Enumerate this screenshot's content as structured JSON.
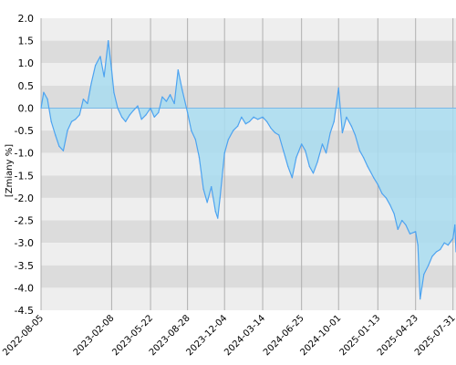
{
  "chart_data": {
    "type": "area",
    "ylabel": "[Zmiany %]",
    "xlabel": "",
    "title": "",
    "ylim": [
      -4.5,
      2.0
    ],
    "xlim": [
      "2022-08-05",
      "2025-08-08"
    ],
    "y_ticks": [
      2.0,
      1.5,
      1.0,
      0.5,
      0.0,
      -0.5,
      -1.0,
      -1.5,
      -2.0,
      -2.5,
      -3.0,
      -3.5,
      -4.0,
      -4.5
    ],
    "y_tick_labels": [
      "2.0",
      "1.5",
      "1.0",
      "0.5",
      "0.0",
      "-0.5",
      "-1.0",
      "-1.5",
      "-2.0",
      "-2.5",
      "-3.0",
      "-3.5",
      "-4.0",
      "-4.5"
    ],
    "x_tick_labels": [
      "2022-08-05",
      "2023-02-08",
      "2023-05-22",
      "2023-08-28",
      "2023-12-04",
      "2024-03-14",
      "2024-06-25",
      "2024-10-01",
      "2025-01-13",
      "2025-04-23",
      "2025-07-31"
    ],
    "grid": true,
    "colors": {
      "line": "#4da3f0",
      "fill": "#a8dcf0",
      "band_dark": "#dcdcdc",
      "band_light": "#eeeeee",
      "zero_line": "#7ab8e6",
      "vgrid": "#b0b0b0"
    },
    "series": [
      {
        "x": [
          "2022-08-05",
          "2022-08-12",
          "2022-08-22",
          "2022-09-01",
          "2022-09-12",
          "2022-09-22",
          "2022-10-03",
          "2022-10-14",
          "2022-10-25",
          "2022-11-04",
          "2022-11-15",
          "2022-11-25",
          "2022-12-06",
          "2022-12-16",
          "2022-12-27",
          "2023-01-09",
          "2023-01-19",
          "2023-01-30",
          "2023-02-08",
          "2023-02-14",
          "2023-02-24",
          "2023-03-07",
          "2023-03-17",
          "2023-03-28",
          "2023-04-07",
          "2023-04-18",
          "2023-04-28",
          "2023-05-10",
          "2023-05-22",
          "2023-06-01",
          "2023-06-12",
          "2023-06-22",
          "2023-07-03",
          "2023-07-13",
          "2023-07-24",
          "2023-08-03",
          "2023-08-14",
          "2023-08-28",
          "2023-09-07",
          "2023-09-18",
          "2023-09-28",
          "2023-10-09",
          "2023-10-19",
          "2023-10-30",
          "2023-11-10",
          "2023-11-16",
          "2023-11-22",
          "2023-12-04",
          "2023-12-14",
          "2023-12-27",
          "2024-01-08",
          "2024-01-18",
          "2024-01-29",
          "2024-02-08",
          "2024-02-19",
          "2024-03-01",
          "2024-03-14",
          "2024-03-25",
          "2024-04-05",
          "2024-04-16",
          "2024-04-26",
          "2024-05-08",
          "2024-05-20",
          "2024-05-31",
          "2024-06-11",
          "2024-06-25",
          "2024-07-05",
          "2024-07-16",
          "2024-07-26",
          "2024-08-06",
          "2024-08-19",
          "2024-08-29",
          "2024-09-09",
          "2024-09-19",
          "2024-10-01",
          "2024-10-11",
          "2024-10-22",
          "2024-11-04",
          "2024-11-14",
          "2024-11-26",
          "2024-12-06",
          "2024-12-17",
          "2025-01-02",
          "2025-01-13",
          "2025-01-24",
          "2025-02-04",
          "2025-02-14",
          "2025-02-25",
          "2025-03-07",
          "2025-03-18",
          "2025-03-28",
          "2025-04-08",
          "2025-04-23",
          "2025-04-29",
          "2025-05-05",
          "2025-05-15",
          "2025-05-27",
          "2025-06-06",
          "2025-06-17",
          "2025-06-27",
          "2025-07-08",
          "2025-07-18",
          "2025-07-31",
          "2025-08-05",
          "2025-08-08"
        ],
        "y": [
          0.0,
          0.35,
          0.2,
          -0.3,
          -0.6,
          -0.85,
          -0.95,
          -0.5,
          -0.3,
          -0.25,
          -0.15,
          0.2,
          0.1,
          0.55,
          0.95,
          1.15,
          0.7,
          1.5,
          0.85,
          0.35,
          0.0,
          -0.2,
          -0.3,
          -0.15,
          -0.05,
          0.05,
          -0.25,
          -0.15,
          0.0,
          -0.2,
          -0.1,
          0.25,
          0.15,
          0.3,
          0.1,
          0.85,
          0.4,
          -0.1,
          -0.5,
          -0.7,
          -1.1,
          -1.8,
          -2.1,
          -1.75,
          -2.3,
          -2.45,
          -2.0,
          -1.0,
          -0.7,
          -0.5,
          -0.4,
          -0.2,
          -0.35,
          -0.3,
          -0.2,
          -0.25,
          -0.2,
          -0.3,
          -0.45,
          -0.55,
          -0.6,
          -0.95,
          -1.3,
          -1.55,
          -1.1,
          -0.8,
          -0.95,
          -1.3,
          -1.45,
          -1.2,
          -0.8,
          -1.0,
          -0.55,
          -0.3,
          0.45,
          -0.55,
          -0.2,
          -0.4,
          -0.6,
          -0.95,
          -1.1,
          -1.3,
          -1.55,
          -1.7,
          -1.9,
          -2.0,
          -2.15,
          -2.35,
          -2.7,
          -2.5,
          -2.6,
          -2.8,
          -2.75,
          -3.05,
          -4.25,
          -3.7,
          -3.5,
          -3.3,
          -3.2,
          -3.15,
          -3.0,
          -3.05,
          -2.9,
          -2.6,
          -3.2
        ]
      }
    ]
  }
}
